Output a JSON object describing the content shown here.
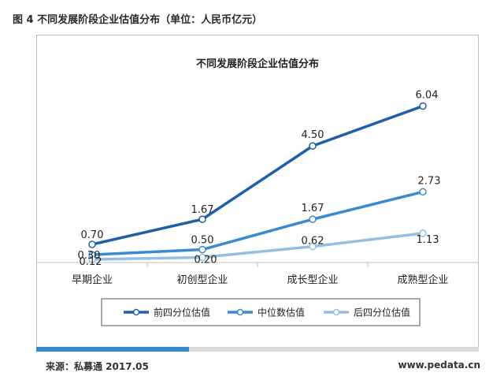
{
  "caption": "图 4 不同发展阶段企业估值分布（单位：人民币亿元）",
  "source": "来源：私募通 2017.05",
  "site": "www.pedata.cn",
  "chart_data": {
    "type": "line",
    "title": "不同发展阶段企业估值分布",
    "categories": [
      "早期企业",
      "初创型企业",
      "成长型企业",
      "成熟型企业"
    ],
    "ylim": [
      0,
      7
    ],
    "grid": false,
    "legend_position": "bottom",
    "series": [
      {
        "name": "前四分位估值",
        "values": [
          0.7,
          1.67,
          4.5,
          6.04
        ],
        "labels": [
          "0.70",
          "1.67",
          "4.50",
          "6.04"
        ],
        "color": "#1f5fa8"
      },
      {
        "name": "中位数估值",
        "values": [
          0.3,
          0.5,
          1.67,
          2.73
        ],
        "labels": [
          "0.30",
          "0.50",
          "1.67",
          "2.73"
        ],
        "color": "#3a8ad0"
      },
      {
        "name": "后四分位估值",
        "values": [
          0.12,
          0.2,
          0.62,
          1.13
        ],
        "labels": [
          "0.12",
          "0.20",
          "0.62",
          "1.13"
        ],
        "color": "#93bfe3"
      }
    ]
  }
}
